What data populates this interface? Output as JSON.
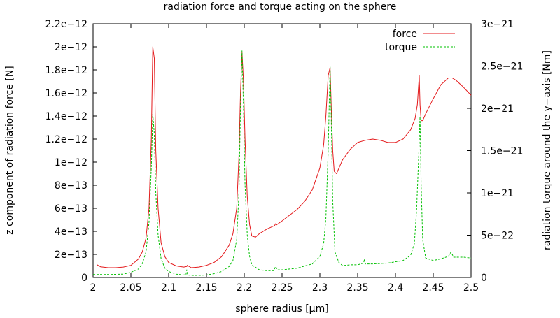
{
  "chart_data": {
    "type": "line",
    "title": "radiation force and torque acting on the sphere",
    "xlabel": "sphere radius [µm]",
    "ylabel": "z component of radiation force [N]",
    "y2label": "radiation torque around the y−axis [Nm]",
    "xlim": [
      2.0,
      2.5
    ],
    "ylim": [
      0,
      2.2e-12
    ],
    "y2lim": [
      0,
      3e-21
    ],
    "x_ticks": [
      "2",
      "2.05",
      "2.1",
      "2.15",
      "2.2",
      "2.25",
      "2.3",
      "2.35",
      "2.4",
      "2.45",
      "2.5"
    ],
    "y_ticks": [
      "0",
      "2e−13",
      "4e−13",
      "6e−13",
      "8e−13",
      "1e−12",
      "1.2e−12",
      "1.4e−12",
      "1.6e−12",
      "1.8e−12",
      "2e−12",
      "2.2e−12"
    ],
    "y2_ticks": [
      "0",
      "5e−22",
      "1e−21",
      "1.5e−21",
      "2e−21",
      "2.5e−21",
      "3e−21"
    ],
    "grid": false,
    "legend_position": "top-right",
    "series": [
      {
        "name": "force",
        "axis": "left",
        "color": "#e41a1c",
        "x": [
          2.0,
          2.005,
          2.0055,
          2.01,
          2.02,
          2.03,
          2.04,
          2.05,
          2.06,
          2.065,
          2.07,
          2.074,
          2.077,
          2.079,
          2.081,
          2.083,
          2.086,
          2.09,
          2.095,
          2.1,
          2.11,
          2.12,
          2.124,
          2.1245,
          2.13,
          2.14,
          2.15,
          2.16,
          2.17,
          2.18,
          2.185,
          2.19,
          2.193,
          2.195,
          2.197,
          2.199,
          2.201,
          2.204,
          2.207,
          2.21,
          2.215,
          2.22,
          2.23,
          2.24,
          2.242,
          2.2425,
          2.25,
          2.26,
          2.27,
          2.28,
          2.29,
          2.3,
          2.305,
          2.308,
          2.311,
          2.3135,
          2.315,
          2.317,
          2.319,
          2.322,
          2.326,
          2.33,
          2.34,
          2.35,
          2.36,
          2.37,
          2.38,
          2.39,
          2.4,
          2.41,
          2.42,
          2.426,
          2.429,
          2.4315,
          2.4325,
          2.434,
          2.436,
          2.44,
          2.45,
          2.46,
          2.47,
          2.475,
          2.48,
          2.49,
          2.5
        ],
        "values": [
          1e-13,
          1e-13,
          1.1e-13,
          9.2e-14,
          8.5e-14,
          8.5e-14,
          9e-14,
          1.05e-13,
          1.6e-13,
          2.2e-13,
          3.4e-13,
          6e-13,
          1.2e-12,
          2e-12,
          1.9e-12,
          1.1e-12,
          6e-13,
          3e-13,
          1.8e-13,
          1.3e-13,
          1e-13,
          9e-14,
          9.5e-14,
          1.05e-13,
          8.5e-14,
          9e-14,
          1.05e-13,
          1.3e-13,
          1.8e-13,
          2.8e-13,
          3.8e-13,
          6e-13,
          1.05e-12,
          1.6e-12,
          1.95e-12,
          1.7e-12,
          1.2e-12,
          7e-13,
          4.6e-13,
          3.6e-13,
          3.5e-13,
          3.8e-13,
          4.2e-13,
          4.5e-13,
          4.7e-13,
          4.55e-13,
          4.9e-13,
          5.4e-13,
          5.9e-13,
          6.6e-13,
          7.6e-13,
          9.5e-13,
          1.15e-12,
          1.4e-12,
          1.75e-12,
          1.82e-12,
          1.5e-12,
          1.1e-12,
          9.2e-13,
          9e-13,
          9.6e-13,
          1.02e-12,
          1.11e-12,
          1.17e-12,
          1.19e-12,
          1.2e-12,
          1.19e-12,
          1.17e-12,
          1.17e-12,
          1.2e-12,
          1.28e-12,
          1.38e-12,
          1.5e-12,
          1.75e-12,
          1.5e-12,
          1.36e-12,
          1.36e-12,
          1.42e-12,
          1.55e-12,
          1.67e-12,
          1.73e-12,
          1.73e-12,
          1.71e-12,
          1.65e-12,
          1.58e-12
        ]
      },
      {
        "name": "torque",
        "axis": "right",
        "color": "#00c000",
        "x": [
          2.0,
          2.02,
          2.04,
          2.05,
          2.06,
          2.065,
          2.07,
          2.074,
          2.077,
          2.079,
          2.081,
          2.083,
          2.086,
          2.09,
          2.095,
          2.1,
          2.11,
          2.12,
          2.123,
          2.124,
          2.125,
          2.13,
          2.14,
          2.15,
          2.16,
          2.17,
          2.18,
          2.185,
          2.19,
          2.193,
          2.195,
          2.197,
          2.199,
          2.201,
          2.204,
          2.207,
          2.21,
          2.22,
          2.23,
          2.239,
          2.2415,
          2.244,
          2.25,
          2.27,
          2.29,
          2.3,
          2.305,
          2.308,
          2.311,
          2.3135,
          2.315,
          2.317,
          2.32,
          2.325,
          2.33,
          2.34,
          2.35,
          2.358,
          2.359,
          2.36,
          2.37,
          2.39,
          2.41,
          2.42,
          2.425,
          2.428,
          2.431,
          2.4325,
          2.434,
          2.436,
          2.44,
          2.45,
          2.46,
          2.47,
          2.4735,
          2.477,
          2.49,
          2.5
        ],
        "values": [
          3.5e-23,
          3.5e-23,
          4e-23,
          6e-23,
          1e-22,
          1.6e-22,
          3e-22,
          6.5e-22,
          1.3e-21,
          1.93e-21,
          1.7e-21,
          1e-21,
          5e-22,
          2.2e-22,
          1.1e-22,
          7e-23,
          4e-23,
          3e-23,
          3.5e-23,
          9e-23,
          3e-23,
          2.5e-23,
          2.5e-23,
          3e-23,
          4.5e-23,
          7e-23,
          1.3e-22,
          2e-22,
          4.5e-22,
          1e-21,
          2e-21,
          2.68e-21,
          2e-21,
          1.1e-21,
          5e-22,
          2.5e-22,
          1.5e-22,
          9e-23,
          8e-23,
          8e-23,
          1.3e-22,
          9e-23,
          9e-23,
          1.1e-22,
          1.6e-22,
          2.5e-22,
          4e-22,
          7e-22,
          1.5e-21,
          2.5e-21,
          1.9e-21,
          9e-22,
          3e-22,
          1.8e-22,
          1.4e-22,
          1.5e-22,
          1.5e-22,
          1.7e-22,
          2.2e-22,
          1.6e-22,
          1.6e-22,
          1.7e-22,
          2e-22,
          2.6e-22,
          4e-22,
          8e-22,
          1.5e-21,
          1.9e-21,
          1.1e-21,
          4.5e-22,
          2.3e-22,
          2e-22,
          2.2e-22,
          2.5e-22,
          3e-22,
          2.4e-22,
          2.4e-22,
          2.3e-22
        ]
      }
    ]
  }
}
